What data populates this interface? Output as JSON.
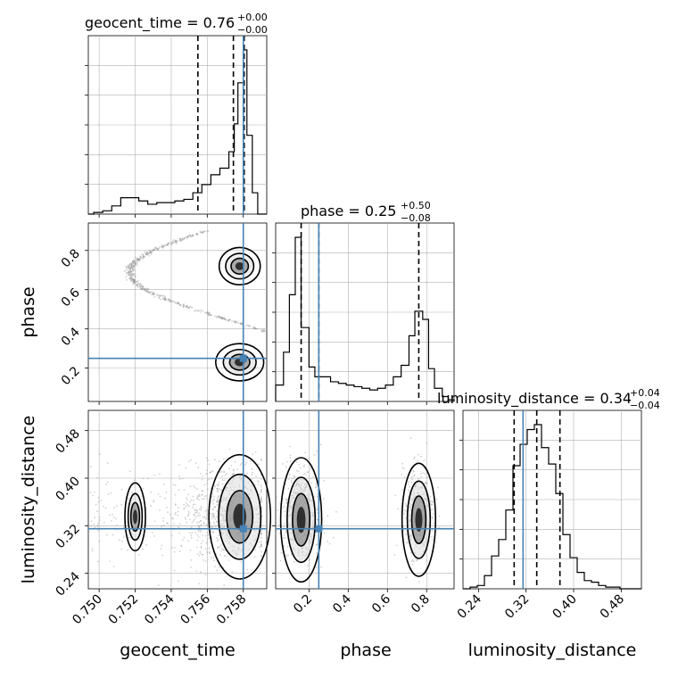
{
  "colors": {
    "truth": "#4682b4",
    "hist": "#000000",
    "grid": "#b0b0b0",
    "contour": "#000000",
    "scatter": "#9a9a9a"
  },
  "chart_data": {
    "type": "corner",
    "grid": true,
    "parameters": [
      {
        "name": "geocent_time",
        "axis_label": "geocent_time",
        "title_prefix": "geocent_time = 0.76",
        "title_upper": "+0.00",
        "title_lower": "−0.00",
        "range": [
          0.7494,
          0.7593
        ],
        "ticks": [
          0.75,
          0.752,
          0.754,
          0.756,
          0.758
        ],
        "tick_labels": [
          "0.750",
          "0.752",
          "0.754",
          "0.756",
          "0.758"
        ],
        "truth": 0.758,
        "quantiles": [
          0.75548,
          0.75745,
          0.75805
        ]
      },
      {
        "name": "phase",
        "axis_label": "phase",
        "title_prefix": "phase = 0.25",
        "title_upper": "+0.50",
        "title_lower": "−0.08",
        "range": [
          0.03,
          0.94
        ],
        "ticks": [
          0.2,
          0.4,
          0.6,
          0.8
        ],
        "tick_labels": [
          "0.2",
          "0.4",
          "0.6",
          "0.8"
        ],
        "truth": 0.25,
        "quantiles": [
          0.16,
          0.25,
          0.76
        ]
      },
      {
        "name": "luminosity_distance",
        "axis_label": "luminosity_distance",
        "title_prefix": "luminosity_distance = 0.34",
        "title_upper": "+0.04",
        "title_lower": "−0.04",
        "range": [
          0.214,
          0.514
        ],
        "ticks": [
          0.24,
          0.32,
          0.4,
          0.48
        ],
        "tick_labels": [
          "0.24",
          "0.32",
          "0.40",
          "0.48"
        ],
        "truth": 0.315,
        "quantiles": [
          0.3,
          0.338,
          0.377
        ]
      }
    ],
    "histograms": [
      {
        "parameter": "geocent_time",
        "bin_edges": [
          0.7494,
          0.7497,
          0.7502,
          0.7507,
          0.7512,
          0.7517,
          0.7522,
          0.7527,
          0.7532,
          0.7537,
          0.7542,
          0.7547,
          0.7552,
          0.7557,
          0.7562,
          0.7567,
          0.7572,
          0.7575,
          0.7577,
          0.758,
          0.7582,
          0.7585,
          0.7588,
          0.7593
        ],
        "counts": [
          0,
          0.01,
          0.02,
          0.05,
          0.1,
          0.1,
          0.08,
          0.06,
          0.07,
          0.07,
          0.08,
          0.09,
          0.13,
          0.18,
          0.24,
          0.28,
          0.38,
          0.55,
          0.8,
          1.0,
          0.48,
          0.13,
          0.0
        ]
      },
      {
        "parameter": "phase",
        "bin_edges": [
          0.03,
          0.07,
          0.1,
          0.13,
          0.16,
          0.2,
          0.23,
          0.27,
          0.31,
          0.35,
          0.39,
          0.43,
          0.47,
          0.51,
          0.55,
          0.59,
          0.63,
          0.67,
          0.71,
          0.74,
          0.78,
          0.81,
          0.84,
          0.88,
          0.91,
          0.94
        ],
        "counts": [
          0.1,
          0.3,
          0.65,
          1.0,
          0.45,
          0.21,
          0.15,
          0.15,
          0.12,
          0.11,
          0.1,
          0.09,
          0.08,
          0.07,
          0.08,
          0.1,
          0.15,
          0.22,
          0.4,
          0.55,
          0.5,
          0.2,
          0.08,
          0.03,
          0.01
        ]
      },
      {
        "parameter": "luminosity_distance",
        "bin_edges": [
          0.214,
          0.226,
          0.238,
          0.25,
          0.262,
          0.274,
          0.286,
          0.298,
          0.31,
          0.322,
          0.334,
          0.346,
          0.358,
          0.37,
          0.382,
          0.394,
          0.406,
          0.418,
          0.43,
          0.442,
          0.454,
          0.466,
          0.478,
          0.49,
          0.502,
          0.514
        ],
        "counts": [
          0.0,
          0.01,
          0.02,
          0.08,
          0.2,
          0.3,
          0.48,
          0.75,
          0.88,
          0.97,
          1.0,
          0.86,
          0.76,
          0.58,
          0.33,
          0.19,
          0.1,
          0.05,
          0.04,
          0.02,
          0.01,
          0.01,
          0,
          0,
          0
        ]
      }
    ],
    "pairs": [
      {
        "x": "geocent_time",
        "y": "phase"
      },
      {
        "x": "geocent_time",
        "y": "luminosity_distance"
      },
      {
        "x": "phase",
        "y": "luminosity_distance"
      }
    ]
  }
}
